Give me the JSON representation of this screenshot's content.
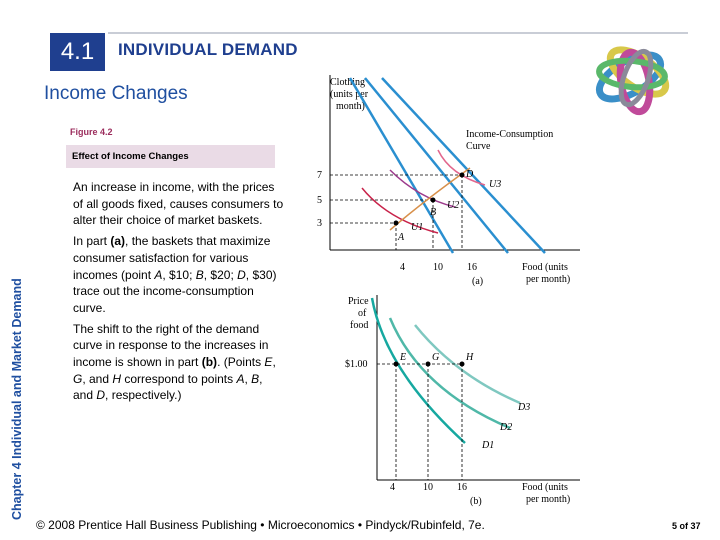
{
  "header": {
    "section_number": "4.1",
    "title": "INDIVIDUAL DEMAND",
    "subtitle": "Income Changes"
  },
  "sidebar": {
    "chapter_label": "Chapter 4 Individual and Market Demand"
  },
  "figure": {
    "label": "Figure 4.2",
    "caption": "Effect of Income Changes"
  },
  "body": {
    "paragraph_1": "An increase in income, with the prices of all goods fixed, causes consumers to alter their choice of market baskets.",
    "paragraph_2": {
      "p1": "In part ",
      "b1": "(a)",
      "p2": ", the baskets that maximize consumer satisfaction for various incomes (point ",
      "i1": "A",
      "p3": ", $10; ",
      "i2": "B",
      "p4": ", $20; ",
      "i3": "D",
      "p5": ", $30) trace out the income-consumption curve."
    },
    "paragraph_3": {
      "p1": "The shift to the right of the demand curve in response to the increases in income is shown in part ",
      "b1": "(b)",
      "p2": ". (Points ",
      "i1": "E",
      "p3": ", ",
      "i2": "G",
      "p4": ", and ",
      "i3": "H",
      "p5": " correspond to points ",
      "i4": "A",
      "p6": ", ",
      "i5": "B",
      "p7": ", and ",
      "i6": "D",
      "p8": ", respectively.)"
    }
  },
  "chart_a": {
    "ylabel_1": "Clothing",
    "ylabel_2": "(units per",
    "ylabel_3": "month)",
    "xlabel_1": "Food (units",
    "xlabel_2": "per month)",
    "part": "(a)",
    "curve_label_1": "Income-Consumption",
    "curve_label_2": "Curve",
    "y_ticks": [
      "7",
      "5",
      "3"
    ],
    "x_ticks": [
      "4",
      "10",
      "16"
    ],
    "points": [
      "A",
      "B",
      "D"
    ],
    "indifference": [
      "U1",
      "U2",
      "U3"
    ]
  },
  "chart_b": {
    "ylabel_1": "Price",
    "ylabel_2": "of",
    "ylabel_3": "food",
    "price_tick": "$1.00",
    "xlabel_1": "Food (units",
    "xlabel_2": "per month)",
    "part": "(b)",
    "x_ticks": [
      "4",
      "10",
      "16"
    ],
    "points": [
      "E",
      "G",
      "H"
    ],
    "demand": [
      "D1",
      "D2",
      "D3"
    ]
  },
  "footer": {
    "text": "© 2008 Prentice Hall Business Publishing  •  Microeconomics  •  Pindyck/Rubinfeld, 7e.",
    "page": "5 of 37"
  },
  "colors": {
    "accent_blue": "#1f3f8f",
    "budget_line": "#2a8fd0",
    "indifference_u1": "#c8234a",
    "indifference_u2": "#9c3a8c",
    "indifference_u3": "#e2668c",
    "demand_d1": "#16a8a0",
    "demand_d2": "#4fb8a8",
    "demand_d3": "#7fc8c0"
  },
  "logo": {
    "icon": "interlocked-rings-icon"
  }
}
